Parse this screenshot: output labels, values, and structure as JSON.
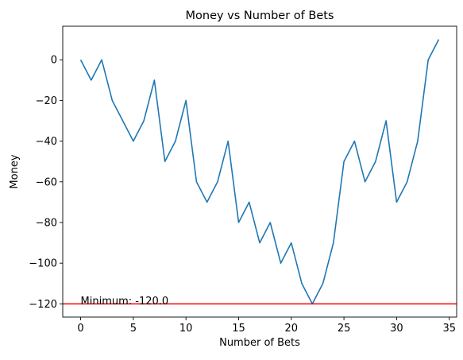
{
  "chart_data": {
    "type": "line",
    "title": "Money vs Number of Bets",
    "xlabel": "Number of Bets",
    "ylabel": "Money",
    "xlim": [
      -1.7,
      35.7
    ],
    "ylim": [
      -126.5,
      16.5
    ],
    "xticks": [
      0,
      5,
      10,
      15,
      20,
      25,
      30,
      35
    ],
    "yticks": [
      0,
      -20,
      -40,
      -60,
      -80,
      -100,
      -120
    ],
    "grid": false,
    "series": [
      {
        "color": "#1f77b4",
        "x": [
          0,
          1,
          2,
          3,
          4,
          5,
          6,
          7,
          8,
          9,
          10,
          11,
          12,
          13,
          14,
          15,
          16,
          17,
          18,
          19,
          20,
          21,
          22,
          23,
          24,
          25,
          26,
          27,
          28,
          29,
          30,
          31,
          32,
          33,
          34
        ],
        "y": [
          0,
          -10,
          0,
          -20,
          -30,
          -40,
          -30,
          -10,
          -50,
          -40,
          -20,
          -60,
          -70,
          -60,
          -40,
          -80,
          -70,
          -90,
          -80,
          -100,
          -90,
          -110,
          -120,
          -110,
          -90,
          -50,
          -40,
          -60,
          -50,
          -30,
          -70,
          -60,
          -40,
          0,
          10
        ]
      }
    ],
    "hline": {
      "y": -120,
      "color": "#ff0000"
    },
    "annotation": {
      "text": "Minimum: -120.0",
      "x": 0,
      "y": -120
    }
  }
}
